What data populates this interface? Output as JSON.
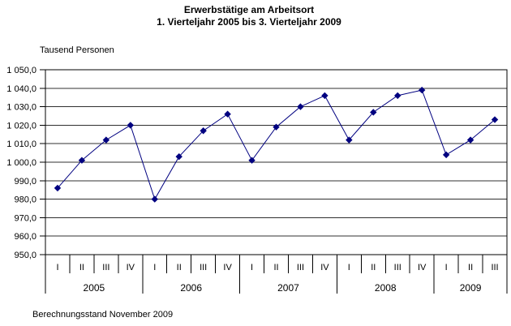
{
  "title": {
    "line1": "Erwerbstätige am Arbeitsort",
    "line2": "1. Vierteljahr 2005 bis 3. Vierteljahr 2009"
  },
  "footnote": "Berechnungsstand November 2009",
  "chart_data": {
    "type": "line",
    "title": "Erwerbstätige am Arbeitsort",
    "subtitle": "1. Vierteljahr 2005 bis 3. Vierteljahr 2009",
    "ylabel": "Tausend Personen",
    "xlabel": "",
    "ylim": [
      950,
      1050
    ],
    "ytick_step": 10,
    "ytick_labels": [
      "1 050,0",
      "1 040,0",
      "1 030,0",
      "1 020,0",
      "1 010,0",
      "1 000,0",
      "990,0",
      "980,0",
      "970,0",
      "960,0",
      "950,0"
    ],
    "grid": true,
    "legend": "none",
    "line_color": "#000080",
    "marker": "diamond",
    "years": [
      {
        "label": "2005",
        "quarters": [
          "I",
          "II",
          "III",
          "IV"
        ]
      },
      {
        "label": "2006",
        "quarters": [
          "I",
          "II",
          "III",
          "IV"
        ]
      },
      {
        "label": "2007",
        "quarters": [
          "I",
          "II",
          "III",
          "IV"
        ]
      },
      {
        "label": "2008",
        "quarters": [
          "I",
          "II",
          "III",
          "IV"
        ]
      },
      {
        "label": "2009",
        "quarters": [
          "I",
          "II",
          "III"
        ]
      }
    ],
    "x_categories": [
      "I 2005",
      "II 2005",
      "III 2005",
      "IV 2005",
      "I 2006",
      "II 2006",
      "III 2006",
      "IV 2006",
      "I 2007",
      "II 2007",
      "III 2007",
      "IV 2007",
      "I 2008",
      "II 2008",
      "III 2008",
      "IV 2008",
      "I 2009",
      "II 2009",
      "III 2009"
    ],
    "series": [
      {
        "name": "Erwerbstätige am Arbeitsort",
        "values": [
          986,
          1001,
          1012,
          1020,
          980,
          1003,
          1017,
          1026,
          1001,
          1019,
          1030,
          1036,
          1012,
          1027,
          1036,
          1039,
          1004,
          1012,
          1023
        ]
      }
    ]
  }
}
